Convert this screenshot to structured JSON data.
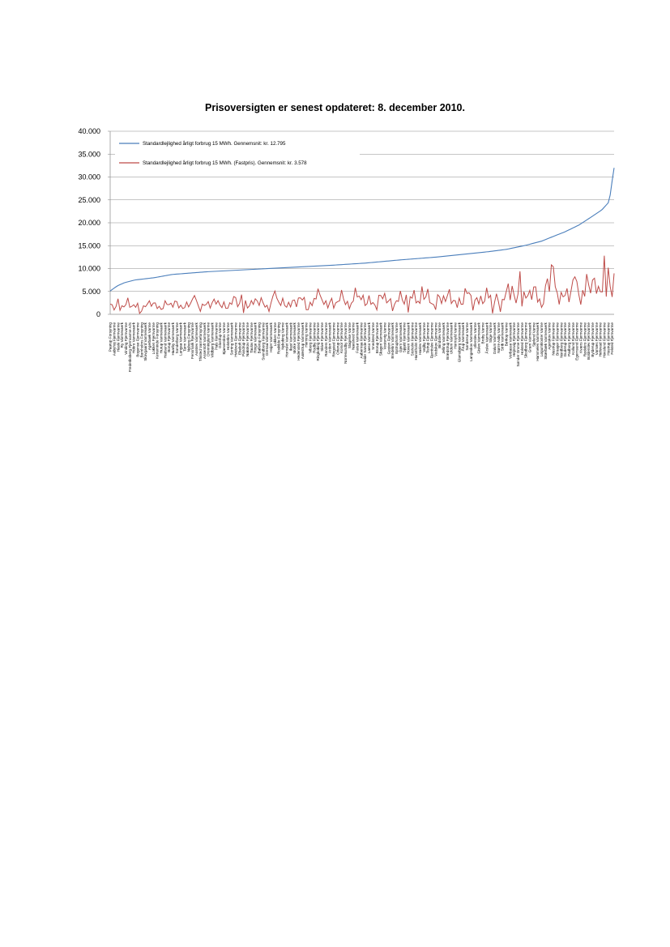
{
  "chart_data": {
    "type": "line",
    "title": "Prisoversigten er senest opdateret: 8. december 2010.",
    "xlabel": "",
    "ylabel": "",
    "ylim": [
      0,
      40000
    ],
    "yticks": [
      0,
      5000,
      10000,
      15000,
      20000,
      25000,
      30000,
      35000,
      40000
    ],
    "ytick_labels": [
      "0",
      "5.000",
      "10.000",
      "15.000",
      "20.000",
      "25.000",
      "30.000",
      "35.000",
      "40.000"
    ],
    "grid": true,
    "legend_position": "top-left",
    "n_points": 258,
    "x_labels_every": 2,
    "categories": [
      "Paarup Forsyning",
      "Vesterbo Fjernvarme",
      "Aabyhoj Fjernvarme",
      "Aarup Fjernvarme",
      "Hasle Fjernvarme",
      "Aulum Fjernvarme",
      "Ry Varmevaerk",
      "Grindsted Fjernvarme",
      "Vinding Fjernvarme",
      "Kolding Varme",
      "Frederiksberg Fjernvarme A/S",
      "Skaerbaek Varme",
      "Hobro Varmevaerk",
      "Assens Varmevaerk",
      "Bogense Fjernvarme",
      "Vejen Varmevaerk",
      "Bornholms Forsyning",
      "Bjerringbro Varmevaerk",
      "Skovgaard Varmevaerk",
      "Hjerting Fjernvarme",
      "Agerbaek Varme",
      "Sindal Fjernvarme",
      "Lokken Fjernvarme",
      "Lemvig Varmevaerk",
      "Kerteminde Forsyning",
      "Hanstholm Varmevaerk",
      "Hurup Varmevaerk",
      "Hojslev Varmevaerk",
      "Hadsund Varmevaerk",
      "Rodding Fjernvarme",
      "Borup Fjernvarme",
      "Skjern Varmevaerk",
      "Haarby Varmevaerk",
      "Gilleleje Fjernvarme",
      "Sonderborg Varme",
      "Ribe Varmevaerk",
      "Langaa Varmevaerk",
      "Lintrup Varmevaerk",
      "Tarm Varmevaerk",
      "Skals Kraftvarme",
      "Nyborg Forsyning",
      "Brande Fjernvarme",
      "Fensmark Fjernvarme",
      "Bramming Varmevaerk",
      "Aarslev Varmevaerk",
      "Give Fjernvarme",
      "Thisted Varmeforsyning",
      "Hammel Fjernvarme",
      "Assentoft Varmevaerk",
      "Them Fjernvarme",
      "Dronninglund Varme",
      "Gistrup Varmevaerk",
      "Vildbjerg Varmevaerk",
      "Kjellerup Fjernvarme",
      "Hals Fjernvarme",
      "Vestforbraending",
      "Glostrup Varme",
      "Ulstrup Kraftvarmevaerk",
      "Bjaeverskov Varme",
      "Horsens Varme",
      "Holstebro Varme",
      "Haslev Fjernvarme",
      "Sorring Varmevaerk",
      "Hellevad Varme",
      "Hvidovre Fjernvarme",
      "Odder Varmevaerk",
      "Ebeltoft Fjernvarme",
      "Marstal Fjernvarme",
      "Pandrup Fjernvarme",
      "Stege Fjernvarme",
      "Nakskov Fjernvarme",
      "Hadsten Varmevaerk",
      "Taulov Fjernvarme",
      "Tommerup St. Fjernvarme",
      "Ringe Varmevaerk",
      "Sakskobing Varme",
      "Ballerup Forsyning",
      "Faaborg Fjernvarme",
      "Svendborg Fjernvarme",
      "Mariager Fjernvarme",
      "Grenaa Varmevaerk",
      "Tonder Fjernvarme",
      "Hojer Varmevaerk",
      "Aars Varmevaerk",
      "Lokken Varme",
      "Ans By Fjernvarme",
      "Roskilde Forsyning",
      "Koge Fjernvarme",
      "Nykobing Varme",
      "Billund Varmevaerk",
      "Hornslet Varmevaerk",
      "Frederikshavn Varme",
      "Ikast Varmevaerk",
      "Hinnerup Fjernvarme",
      "Morke Varmevaerk",
      "Galten Varmevaerk",
      "Hedensted Fjernvarme",
      "Lystrup Fjernvarme",
      "Aalestrup Varmevaerk",
      "Hjorring Varmeforsyning",
      "Herning Varme",
      "Karup Varmevaerk",
      "Viborg Fjernvarme",
      "Haderslev Fjernvarme",
      "Rodby Fjernvarme",
      "Struer Forsyning",
      "Ringkobing Fjernvarme",
      "Silkeborg Varme",
      "Skive Fjernvarme",
      "Tjele Varmevaerk",
      "Randers Fjernvarme",
      "Holbaek Forsyning",
      "Arden Varmevaerk",
      "Gram Fjernvarme",
      "Ringsted Fjernvarme",
      "Bording Varmevaerk",
      "Otterup Fjernvarme",
      "Rudkobing Varme",
      "Korsor Fjernvarme",
      "Fjerritslev Varme",
      "Norresundby Fjernvarme",
      "Vamdrup Fjernvarme",
      "Slagelse Varme",
      "Morso Varmevaerk",
      "Naestved Varme",
      "Vordingborg Fjernvarme",
      "Farsø Varmevaerk",
      "Logstor Fjernvarme",
      "Aabenraa Fjernvarme",
      "Ranum Varmevaerk",
      "Hvide Sande Fjernvarme",
      "Sabro Fjernvarme",
      "Laeso Varmevaerk",
      "Nibe Varmevaerk",
      "Snedsted Varme",
      "Kjellerup Varmevaerk",
      "Brorup Fjernvarme",
      "Hurup Fjernvarme",
      "Skagen Varmevaerk",
      "Bogo Fjernvarme",
      "Vestervig Varme",
      "Tinglev Fjernvarme",
      "Gesten Fjernvarme",
      "Sorø Fjernvarme",
      "Bredebro Varmevaerk",
      "Hundested Varmevaerk",
      "Ejstrupholm Varme",
      "Toftlund Fjernvarme",
      "Gjern Varmevaerk",
      "Ulfborg Fjernvarme",
      "Spjald Fjernvarme",
      "Ørnhøj Varme",
      "Hoven Varmevaerk",
      "Videbaek Fjernvarme",
      "Stoholm Fjernvarme",
      "Klitmoller Varme",
      "Hanstholm Fjernvarme",
      "Fakse Fjernvarme",
      "Haslev Varmevaerk",
      "Kalundborg Varme",
      "Vejlby Fjernvarme",
      "Outrup Varmevaerk",
      "Tistrup Fjernvarme",
      "Ansager Varme",
      "Fjerritslev Fjernvarme",
      "Sulsted Varmevaerk",
      "Vodskov Fjernvarme",
      "Hals Varmevaerk",
      "Bindslev Varme",
      "Tarp Fjernvarme",
      "Jelling Varmevaerk",
      "Gedved Fjernvarme",
      "Brædstrup Fjernvarme",
      "Tørring Varme",
      "Uldum Varmevaerk",
      "Juelsminde Fjernvarme",
      "Hornsyld Varme",
      "Løsning Fjernvarme",
      "Glamsbjerg Varmevaerk",
      "Vissenbjerg Fjernvarme",
      "Årup Varmevaerk",
      "Tarup Fjernvarme",
      "Søndersø Varme",
      "Morud Fjernvarme",
      "Langeskov Varmevaerk",
      "Munkebo Fjernvarme",
      "Ullerslev Varme",
      "Ørbæk Fjernvarme",
      "Gislev Varmevaerk",
      "Ryslinge Fjernvarme",
      "Broby Varme",
      "Nr. Lyndelse Fjernvarme",
      "Årslev Varmevaerk",
      "Højby Fjernvarme",
      "Stige Varme",
      "Bellinge Fjernvarme",
      "Dalum Varmevaerk",
      "Ejby Fjernvarme",
      "Nørre Aaby Varme",
      "Middelfart Fjernvarme",
      "Strib Varmevaerk",
      "Fredericia Fjernvarme",
      "Børkop Varme",
      "Egtved Fjernvarme",
      "Vorbasse Varmevaerk",
      "Grindsted Varme",
      "Hejnsvig Fjernvarme",
      "Filskov Varmevaerk",
      "Sønder Omme Fjernvarme",
      "Gørding Varme",
      "Holsted Fjernvarme",
      "Hovborg Varmevaerk",
      "Skodborg Fjernvarme",
      "Vojens Varme",
      "Gram Varmevaerk",
      "Christiansfeld Fjernvarme",
      "Sjølund Varme",
      "Bevtoft Fjernvarme",
      "Hammelev Varmevaerk",
      "Genner Fjernvarme",
      "Løgumkloster Varme",
      "Rømø Fjernvarme",
      "Skærbæk Varmevaerk",
      "Ballum Fjernvarme",
      "Agerskov Varme",
      "Rødding Varmevaerk",
      "Nustrup Fjernvarme",
      "Gråsten Varme",
      "Broager Fjernvarme",
      "Augustenborg Varmevaerk",
      "Nordborg Fjernvarme",
      "Havnbjerg Varme",
      "Guderup Fjernvarme",
      "Sydals Varmevaerk",
      "Padborg Fjernvarme",
      "Kruså Varme",
      "Kollund Fjernvarme",
      "Rinkenæs Varmevaerk",
      "Egernsund Fjernvarme",
      "Als Varme",
      "Kværs Fjernvarme",
      "Aabenraa Varmevaerk",
      "Rødekro Fjernvarme",
      "Hjordkær Varme",
      "Bolderslev Fjernvarme",
      "Tinglev Varmevaerk",
      "Bylderup Fjernvarme",
      "Løjt Varme",
      "Varnæs Fjernvarme",
      "Ravsted Varmevaerk",
      "Hellevad Fjernvarme",
      "Øster Løgum Varme",
      "Hovslund Fjernvarme",
      "Sønder Hostrup Varmevaerk",
      "Hostrup Fjernvarme",
      "Kliplev Varme",
      "Felsted Fjernvarme",
      "Holbøl Varmevaerk",
      "Bov Fjernvarme",
      "Frøslev Varme",
      "Haderup Fjernvarme",
      "Sunds Varmevaerk",
      "Ilskov Fjernvarme",
      "Aadum Varmevaerk",
      "Næstved Fjernvarme",
      "Holme-Olstrup Varme",
      "Tappernøje Fjernvarme",
      "Mern Varmevaerk",
      "Kalvehave Fjernvarme",
      "Stege Varmevaerk",
      "Præstø Fjernvarme",
      "Karise Varme",
      "Vallø Fjernvarme",
      "Ringsted Varmevaerk",
      "Skjelsø Forsyning",
      "Hedehusene Varmevaerk",
      "Klarup Fjernvarme",
      "Hvidovre Varmeforsyning",
      "Herlev Fjernvarme",
      "Lisbjerg Varme",
      "Hedeland Fjernvarme",
      "Varde Kommunale Fjernvarme"
    ],
    "series": [
      {
        "name": "Standardlejlighed årligt forbrug 15 MWh. Gennemsnit: kr.  12.795",
        "color": "#4a7ebb",
        "anchors": [
          [
            0,
            5100
          ],
          [
            4,
            6200
          ],
          [
            8,
            6900
          ],
          [
            14,
            7500
          ],
          [
            25,
            8000
          ],
          [
            35,
            8700
          ],
          [
            55,
            9300
          ],
          [
            80,
            9800
          ],
          [
            105,
            10300
          ],
          [
            125,
            10700
          ],
          [
            145,
            11200
          ],
          [
            165,
            11900
          ],
          [
            185,
            12500
          ],
          [
            200,
            13100
          ],
          [
            215,
            13700
          ],
          [
            225,
            14200
          ],
          [
            235,
            15000
          ],
          [
            245,
            16000
          ],
          [
            252,
            17100
          ],
          [
            258,
            18000
          ],
          [
            266,
            19500
          ],
          [
            272,
            21000
          ],
          [
            279,
            22800
          ],
          [
            283,
            24500
          ],
          [
            284,
            26500
          ],
          [
            285,
            29500
          ],
          [
            286,
            32000
          ]
        ]
      },
      {
        "name": "Standardlejlighed årligt forbrug 15 MWh. (Fastpris). Gennemsnit: kr.  3.578",
        "color": "#be4b48",
        "base_anchors": [
          [
            0,
            1700
          ],
          [
            40,
            2100
          ],
          [
            80,
            2400
          ],
          [
            120,
            2700
          ],
          [
            160,
            3000
          ],
          [
            200,
            3300
          ],
          [
            230,
            3700
          ],
          [
            250,
            4300
          ],
          [
            265,
            5000
          ],
          [
            275,
            5600
          ],
          [
            286,
            6000
          ]
        ],
        "spikes": [
          [
            4,
            3400
          ],
          [
            10,
            3600
          ],
          [
            17,
            200
          ],
          [
            48,
            4100
          ],
          [
            75,
            4300
          ],
          [
            76,
            300
          ],
          [
            93,
            5100
          ],
          [
            118,
            5600
          ],
          [
            139,
            5800
          ],
          [
            169,
            400
          ],
          [
            172,
            5300
          ],
          [
            177,
            6100
          ],
          [
            214,
            5800
          ],
          [
            217,
            200
          ],
          [
            228,
            6200
          ],
          [
            233,
            9400
          ],
          [
            248,
            7800
          ],
          [
            250,
            10800
          ],
          [
            252,
            10400
          ],
          [
            264,
            8200
          ],
          [
            270,
            8800
          ],
          [
            280,
            12800
          ],
          [
            283,
            10200
          ],
          [
            285,
            3800
          ]
        ]
      }
    ]
  }
}
